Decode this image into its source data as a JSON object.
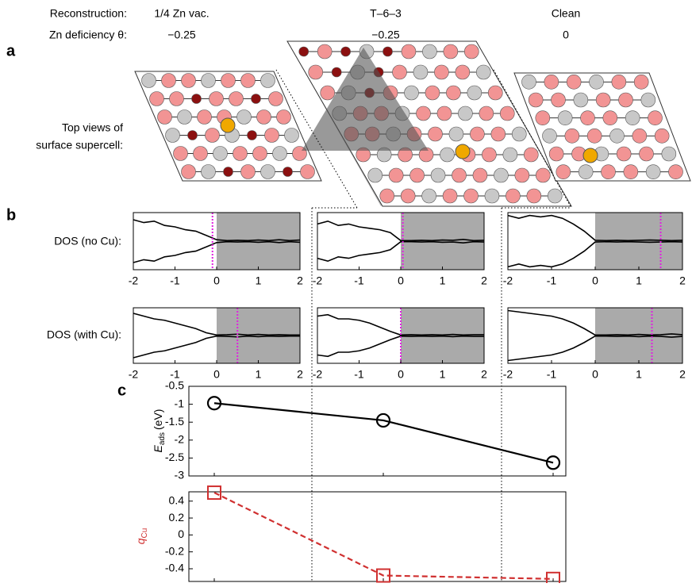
{
  "header": {
    "row_labels": [
      "Reconstruction:",
      "Zn deficiency θ:"
    ],
    "columns": [
      {
        "name": "1/4 Zn vac.",
        "theta": "−0.25"
      },
      {
        "name": "T–6–3",
        "theta": "−0.25"
      },
      {
        "name": "Clean",
        "theta": "0"
      }
    ]
  },
  "panels": {
    "a": "a",
    "b": "b",
    "c": "c"
  },
  "row_labels": {
    "top_views": [
      "Top views of",
      "surface supercell:"
    ],
    "dos_no_cu": "DOS (no Cu):",
    "dos_with_cu": "DOS (with Cu):"
  },
  "chart_data": [
    {
      "type": "line",
      "mirror": true,
      "x": [
        -2,
        -1.75,
        -1.5,
        -1.25,
        -1,
        -0.75,
        -0.5,
        -0.25,
        0,
        0.25,
        0.5,
        0.75,
        1,
        1.25,
        1.5,
        1.75,
        2
      ],
      "values": [
        0.75,
        0.65,
        0.7,
        0.55,
        0.5,
        0.4,
        0.35,
        0.2,
        0.05,
        0.02,
        0.03,
        0.02,
        0.04,
        0.02,
        0.05,
        0.02,
        0.04
      ],
      "color": "#000000",
      "xlim": [
        -2,
        2
      ],
      "ylim": [
        -1,
        1
      ],
      "xticks": [
        -2,
        -1,
        0,
        1,
        2
      ],
      "shade": [
        0,
        2
      ],
      "shade_color": "#aaaaaa",
      "fermi": -0.1,
      "fermi_color": "#e020e0"
    },
    {
      "type": "line",
      "mirror": true,
      "x": [
        -2,
        -1.75,
        -1.5,
        -1.25,
        -1,
        -0.75,
        -0.5,
        -0.25,
        0,
        0.25,
        0.5,
        0.75,
        1,
        1.25,
        1.5,
        1.75,
        2
      ],
      "values": [
        0.6,
        0.7,
        0.55,
        0.6,
        0.5,
        0.45,
        0.4,
        0.3,
        0.02,
        0.02,
        0.03,
        0.02,
        0.04,
        0.03,
        0.06,
        0.02,
        0.03
      ],
      "color": "#000000",
      "xlim": [
        -2,
        2
      ],
      "ylim": [
        -1,
        1
      ],
      "xticks": [
        -2,
        -1,
        0,
        1,
        2
      ],
      "shade": [
        0,
        2
      ],
      "shade_color": "#aaaaaa",
      "fermi": 0.05,
      "fermi_color": "#e020e0"
    },
    {
      "type": "line",
      "mirror": true,
      "x": [
        -2,
        -1.75,
        -1.5,
        -1.25,
        -1,
        -0.75,
        -0.5,
        -0.25,
        0,
        0.25,
        0.5,
        0.75,
        1,
        1.25,
        1.5,
        1.75,
        2
      ],
      "values": [
        0.9,
        0.8,
        0.9,
        0.85,
        0.9,
        0.8,
        0.6,
        0.35,
        0.03,
        0.02,
        0.03,
        0.02,
        0.03,
        0.04,
        0.03,
        0.02,
        0.03
      ],
      "color": "#000000",
      "xlim": [
        -2,
        2
      ],
      "ylim": [
        -1,
        1
      ],
      "xticks": [
        -2,
        -1,
        0,
        1,
        2
      ],
      "shade": [
        0,
        2
      ],
      "shade_color": "#aaaaaa",
      "fermi": 1.5,
      "fermi_color": "#e020e0"
    },
    {
      "type": "line",
      "mirror": true,
      "x": [
        -2,
        -1.75,
        -1.5,
        -1.25,
        -1,
        -0.75,
        -0.5,
        -0.25,
        0,
        0.25,
        0.5,
        0.75,
        1,
        1.25,
        1.5,
        1.75,
        2
      ],
      "values": [
        0.8,
        0.7,
        0.6,
        0.55,
        0.45,
        0.35,
        0.25,
        0.1,
        0.02,
        0.03,
        0.05,
        0.02,
        0.04,
        0.02,
        0.03,
        0.02,
        0.02
      ],
      "color": "#000000",
      "xlim": [
        -2,
        2
      ],
      "ylim": [
        -1,
        1
      ],
      "xticks": [
        -2,
        -1,
        0,
        1,
        2
      ],
      "shade": [
        0,
        2
      ],
      "shade_color": "#aaaaaa",
      "fermi": 0.5,
      "fermi_color": "#e020e0"
    },
    {
      "type": "line",
      "mirror": true,
      "x": [
        -2,
        -1.75,
        -1.5,
        -1.25,
        -1,
        -0.75,
        -0.5,
        -0.25,
        0,
        0.25,
        0.5,
        0.75,
        1,
        1.25,
        1.5,
        1.75,
        2
      ],
      "values": [
        0.7,
        0.75,
        0.6,
        0.6,
        0.55,
        0.45,
        0.3,
        0.15,
        0.02,
        0.03,
        0.02,
        0.03,
        0.02,
        0.04,
        0.02,
        0.03,
        0.03
      ],
      "color": "#000000",
      "xlim": [
        -2,
        2
      ],
      "ylim": [
        -1,
        1
      ],
      "xticks": [
        -2,
        -1,
        0,
        1,
        2
      ],
      "shade": [
        0,
        2
      ],
      "shade_color": "#aaaaaa",
      "fermi": 0,
      "fermi_color": "#e020e0"
    },
    {
      "type": "line",
      "mirror": true,
      "x": [
        -2,
        -1.75,
        -1.5,
        -1.25,
        -1,
        -0.75,
        -0.5,
        -0.25,
        0,
        0.25,
        0.5,
        0.75,
        1,
        1.25,
        1.5,
        1.75,
        2
      ],
      "values": [
        0.9,
        0.85,
        0.8,
        0.75,
        0.7,
        0.6,
        0.45,
        0.25,
        0.02,
        0.02,
        0.03,
        0.02,
        0.04,
        0.02,
        0.03,
        0.06,
        0.03
      ],
      "color": "#000000",
      "xlim": [
        -2,
        2
      ],
      "ylim": [
        -1,
        1
      ],
      "xticks": [
        -2,
        -1,
        0,
        1,
        2
      ],
      "shade": [
        0,
        2
      ],
      "shade_color": "#aaaaaa",
      "fermi": 1.3,
      "fermi_color": "#e020e0"
    },
    {
      "type": "line",
      "categories": [
        null,
        null,
        null
      ],
      "ylabel": "E",
      "ylabel_sub": "ads",
      "ylabel_unit": "(eV)",
      "series": [
        {
          "color": "#000000",
          "marker": "circle",
          "dash": false,
          "values": [
            -0.97,
            -1.45,
            -2.63
          ]
        }
      ],
      "ylim": [
        -3,
        -0.5
      ],
      "yticks": [
        -3,
        -2.5,
        -2,
        -1.5,
        -1,
        -0.5
      ]
    },
    {
      "type": "line",
      "categories": [
        null,
        null,
        null
      ],
      "ylabel": "q",
      "ylabel_sub": "Cu",
      "ylabel_color": "#d03030",
      "series": [
        {
          "color": "#d03030",
          "marker": "square",
          "dash": true,
          "values": [
            0.5,
            -0.48,
            -0.52
          ]
        }
      ],
      "ylim": [
        -0.55,
        0.51
      ],
      "ytick_color": "#d03030",
      "yticks": [
        -0.4,
        -0.2,
        0,
        0.2,
        0.4
      ]
    }
  ]
}
